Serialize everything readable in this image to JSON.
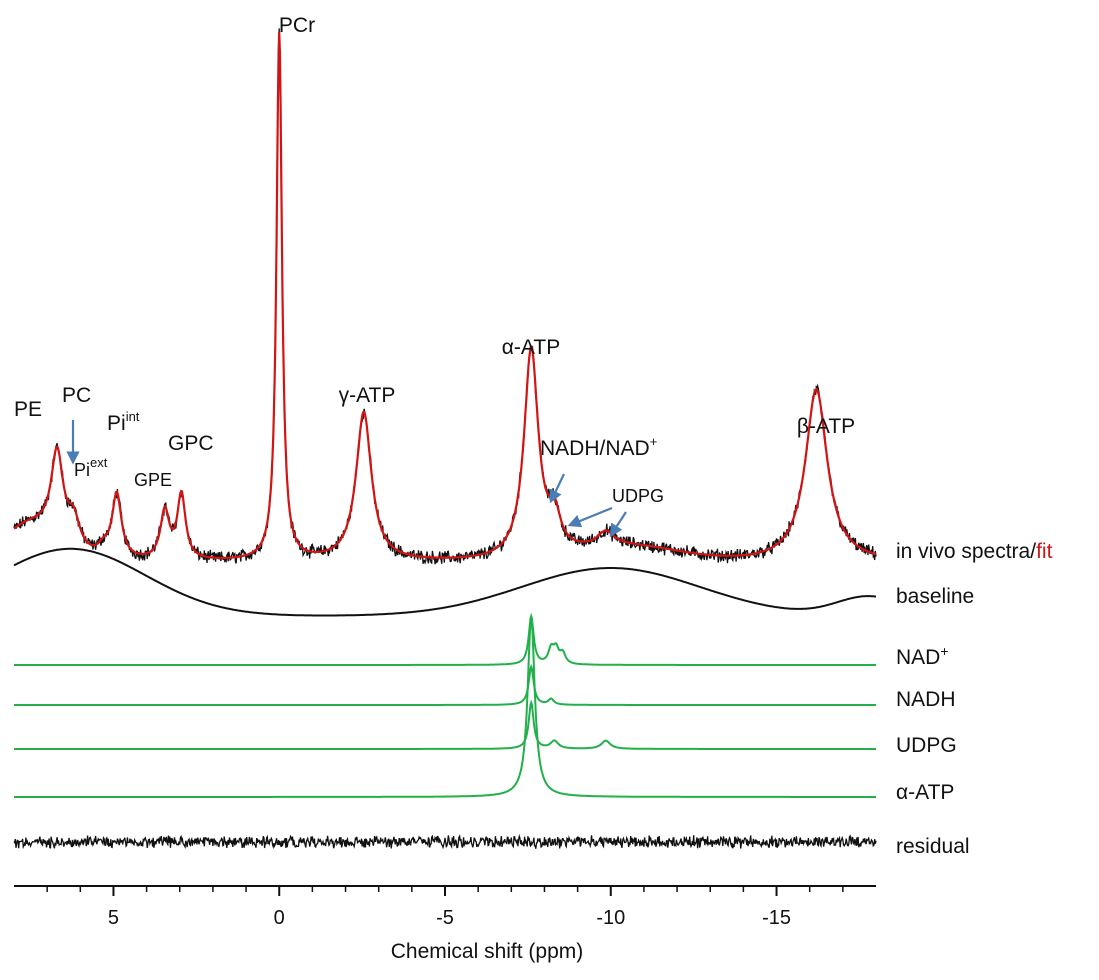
{
  "chart_data": {
    "type": "line",
    "xlabel": "Chemical shift (ppm)",
    "xlim": [
      8,
      -18
    ],
    "x_reversed": true,
    "x_ticks": [
      5,
      0,
      -5,
      -10,
      -15
    ],
    "x_tick_labels": [
      "5",
      "0",
      "-5",
      "-10",
      "-15"
    ],
    "grid": false,
    "colors": {
      "spectrum": "#111111",
      "fit": "#d21414",
      "baseline": "#111111",
      "components": "#22b04a",
      "residual": "#111111",
      "arrows": "#4a7cb5"
    },
    "peaks": [
      {
        "name": "PE",
        "label": "PE",
        "ppm": 6.7,
        "height": 0.36,
        "width": 0.22
      },
      {
        "name": "PC",
        "label": "PC",
        "ppm": 6.2,
        "height": 0.12,
        "width": 0.22
      },
      {
        "name": "Pi-ext",
        "label": "Pi",
        "sup": "ext",
        "ppm": 5.3,
        "height": 0.04,
        "width": 0.2
      },
      {
        "name": "Pi-int",
        "label": "Pi",
        "sup": "int",
        "ppm": 4.9,
        "height": 0.27,
        "width": 0.17
      },
      {
        "name": "GPE",
        "label": "GPE",
        "ppm": 3.45,
        "height": 0.2,
        "width": 0.16
      },
      {
        "name": "GPC",
        "label": "GPC",
        "ppm": 2.95,
        "height": 0.27,
        "width": 0.15
      },
      {
        "name": "PCr",
        "label": "PCr",
        "ppm": 0.0,
        "height": 2.2,
        "width": 0.1
      },
      {
        "name": "gamma-ATP",
        "label": "γ-ATP",
        "ppm": -2.55,
        "height": 0.62,
        "width": 0.28
      },
      {
        "name": "alpha-ATP",
        "label": "α-ATP",
        "ppm": -7.6,
        "height": 0.87,
        "width": 0.26
      },
      {
        "name": "NADH/NAD+",
        "label": "NADH/NAD",
        "sup": "+",
        "ppm": -8.3,
        "height": 0.14,
        "width": 0.22
      },
      {
        "name": "UDPG",
        "label": "UDPG",
        "ppm": -9.85,
        "height": 0.06,
        "width": 0.3
      },
      {
        "name": "beta-ATP",
        "label": "β-ATP",
        "ppm": -16.2,
        "height": 0.72,
        "width": 0.4
      }
    ],
    "series": [
      {
        "name": "in vivo spectra",
        "label": "in vivo  spectra",
        "fit_label": "fit",
        "role": "spectrum with fit"
      },
      {
        "name": "baseline",
        "label": "baseline",
        "role": "baseline"
      },
      {
        "name": "NAD+",
        "label": "NAD",
        "sup": "+",
        "role": "component",
        "peaks": [
          {
            "ppm": -7.6,
            "height": 1.0,
            "width": 0.09
          },
          {
            "ppm": -8.2,
            "height": 0.3,
            "width": 0.1
          },
          {
            "ppm": -8.35,
            "height": 0.3,
            "width": 0.1
          },
          {
            "ppm": -8.55,
            "height": 0.22,
            "width": 0.1
          }
        ]
      },
      {
        "name": "NADH",
        "label": "NADH",
        "role": "component",
        "peaks": [
          {
            "ppm": -7.6,
            "height": 1.0,
            "width": 0.09
          },
          {
            "ppm": -8.2,
            "height": 0.15,
            "width": 0.1
          }
        ]
      },
      {
        "name": "UDPG",
        "label": "UDPG",
        "role": "component",
        "peaks": [
          {
            "ppm": -7.6,
            "height": 1.0,
            "width": 0.09
          },
          {
            "ppm": -8.3,
            "height": 0.17,
            "width": 0.14
          },
          {
            "ppm": -9.85,
            "height": 0.18,
            "width": 0.16
          }
        ]
      },
      {
        "name": "alpha-ATP",
        "label": "α-ATP",
        "role": "component",
        "peaks": [
          {
            "ppm": -7.6,
            "height": 1.0,
            "width": 0.13
          }
        ]
      },
      {
        "name": "residual",
        "label": "residual",
        "role": "residual"
      }
    ]
  }
}
